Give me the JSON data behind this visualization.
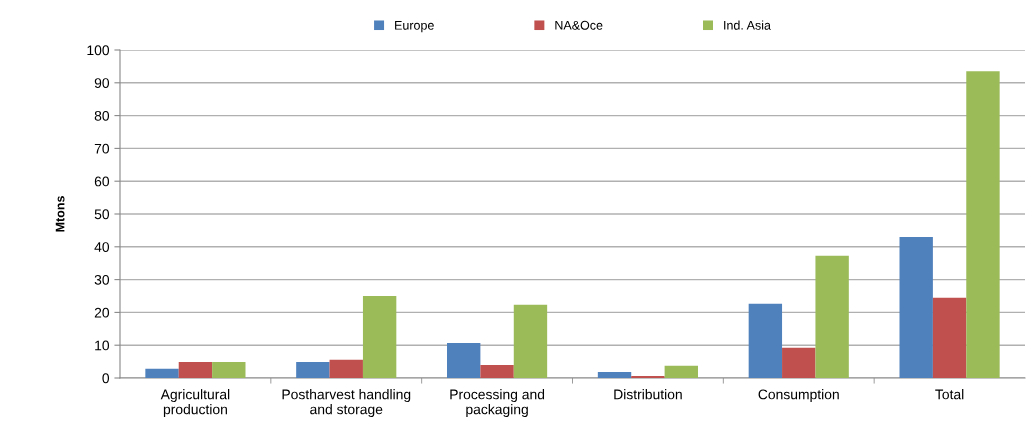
{
  "chart_data": {
    "type": "bar",
    "ylabel": "Mtons",
    "categories": [
      "Agricultural\nproduction",
      "Postharvest handling\nand storage",
      "Processing and\npackaging",
      "Distribution",
      "Consumption",
      "Total"
    ],
    "series": [
      {
        "name": "Europe",
        "color": "#4f81bd",
        "values": [
          2.8,
          4.9,
          10.7,
          1.8,
          22.6,
          43
        ]
      },
      {
        "name": "NA&Oce",
        "color": "#c0504d",
        "values": [
          4.9,
          5.6,
          4.0,
          0.6,
          9.2,
          24.5
        ]
      },
      {
        "name": "Ind. Asia",
        "color": "#9bbb59",
        "values": [
          4.9,
          25,
          22.3,
          3.7,
          37.3,
          93.5
        ]
      }
    ],
    "ylim": [
      0,
      100
    ],
    "yticks": [
      0,
      10,
      20,
      30,
      40,
      50,
      60,
      70,
      80,
      90,
      100
    ],
    "grid": "y",
    "legend": "top"
  }
}
